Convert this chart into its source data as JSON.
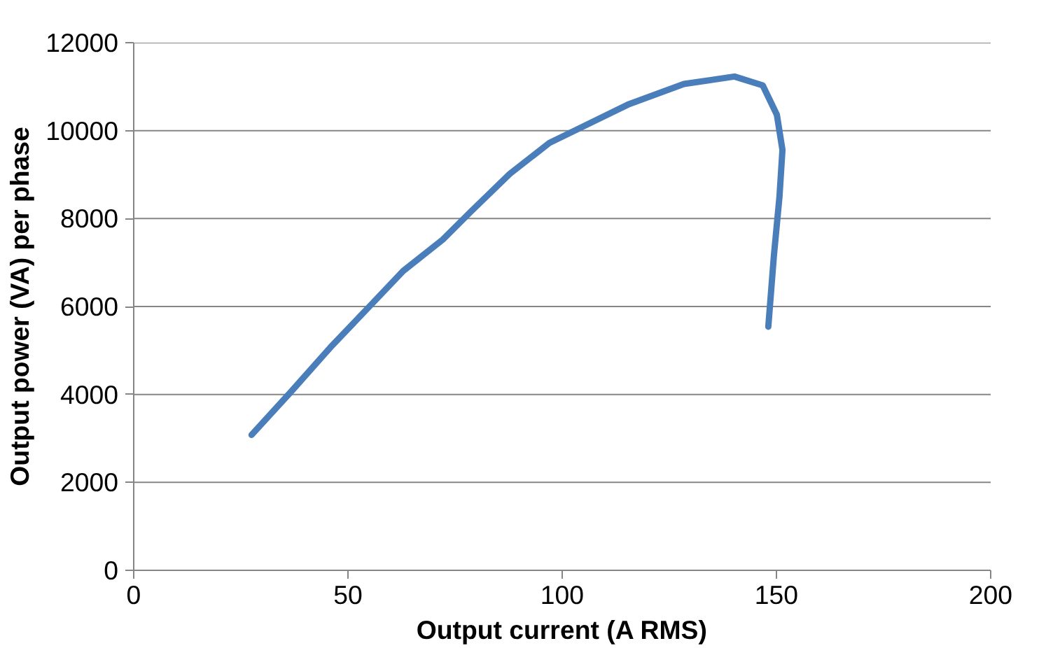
{
  "chart_data": {
    "type": "line",
    "xlabel": "Output current (A RMS)",
    "ylabel": "Output power (VA) per phase",
    "series": [
      {
        "color": "#4a7ebb",
        "x": [
          27.5,
          36.7,
          45.9,
          55.0,
          62.9,
          72.1,
          78.6,
          87.8,
          97.0,
          104.8,
          115.3,
          128.4,
          140.2,
          146.8,
          150.1,
          151.4,
          150.7,
          149.4,
          148.1
        ],
        "values": [
          3080,
          4060,
          5070,
          6000,
          6810,
          7520,
          8150,
          9020,
          9720,
          10090,
          10590,
          11060,
          11230,
          11030,
          10360,
          9560,
          8490,
          7150,
          5540
        ]
      }
    ],
    "xlim": [
      0,
      200
    ],
    "xticks": [
      0,
      50,
      100,
      150,
      200
    ],
    "ylim": [
      0,
      12000
    ],
    "yticks": [
      0,
      2000,
      4000,
      6000,
      8000,
      10000,
      12000
    ],
    "grid": "y",
    "marker": "none",
    "line_style": "solid"
  }
}
